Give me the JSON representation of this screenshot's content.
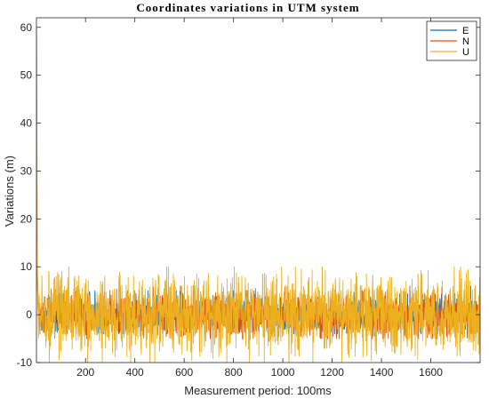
{
  "chart_data": {
    "type": "line",
    "title": "Coordinates variations in UTM system",
    "xlabel": "Measurement period: 100ms",
    "ylabel": "Variations (m)",
    "xlim": [
      1,
      1800
    ],
    "ylim": [
      -10,
      62
    ],
    "x_ticks": [
      200,
      400,
      600,
      800,
      1000,
      1200,
      1400,
      1600
    ],
    "y_ticks": [
      -10,
      0,
      10,
      20,
      30,
      40,
      50,
      60
    ],
    "grid": false,
    "legend_position": "top-right",
    "series": [
      {
        "name": "E",
        "color": "#0072BD",
        "initial_values": [
          15,
          35,
          20,
          12,
          8,
          5,
          3
        ],
        "steady_mean": 0.0,
        "steady_range": [
          -4,
          5
        ]
      },
      {
        "name": "N",
        "color": "#D95319",
        "initial_values": [
          22,
          45,
          30,
          15,
          8,
          4,
          2
        ],
        "steady_mean": 0.0,
        "steady_range": [
          -5,
          6
        ]
      },
      {
        "name": "U",
        "color": "#EDB120",
        "initial_values": [
          61,
          58,
          40,
          20,
          10,
          5,
          3
        ],
        "steady_mean": 0.0,
        "steady_range": [
          -10,
          10
        ]
      }
    ]
  }
}
